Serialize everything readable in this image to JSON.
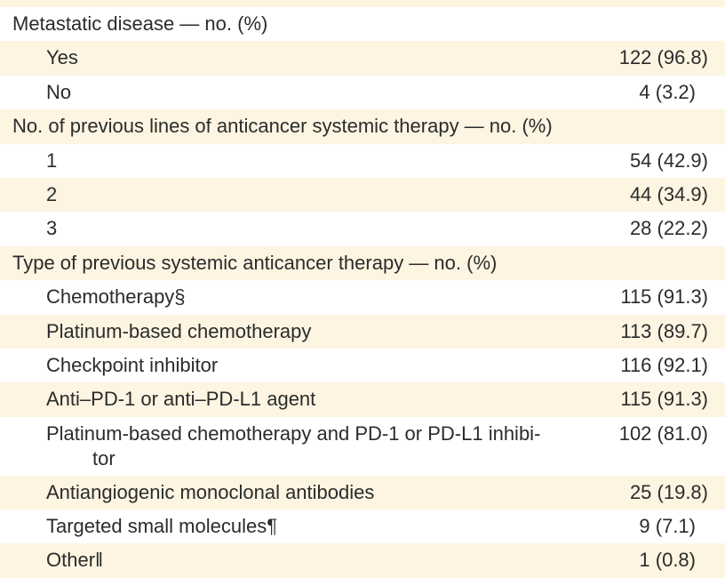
{
  "table": {
    "rows": [
      {
        "label": "Metastatic disease — no. (%)",
        "value": "",
        "type": "header"
      },
      {
        "label": "Yes",
        "value": "122 (96.8)",
        "type": "sub"
      },
      {
        "label": "No",
        "value": "4 (3.2)",
        "type": "sub"
      },
      {
        "label": "No. of previous lines of anticancer systemic therapy — no. (%)",
        "value": "",
        "type": "header"
      },
      {
        "label": "1",
        "value": "54 (42.9)",
        "type": "sub"
      },
      {
        "label": "2",
        "value": "44 (34.9)",
        "type": "sub"
      },
      {
        "label": "3",
        "value": "28 (22.2)",
        "type": "sub"
      },
      {
        "label": "Type of previous systemic anticancer therapy — no. (%)",
        "value": "",
        "type": "header"
      },
      {
        "label": "Chemotherapy§",
        "value": "115 (91.3)",
        "type": "sub"
      },
      {
        "label": "Platinum-based chemotherapy",
        "value": "113 (89.7)",
        "type": "sub"
      },
      {
        "label": "Checkpoint inhibitor",
        "value": "116 (92.1)",
        "type": "sub"
      },
      {
        "label": "Anti–PD-1 or anti–PD-L1 agent",
        "value": "115 (91.3)",
        "type": "sub"
      },
      {
        "label": "Platinum-based chemotherapy and PD-1 or PD-L1 inhibi-",
        "label_cont": "tor",
        "value": "102 (81.0)",
        "type": "sub"
      },
      {
        "label": "Antiangiogenic monoclonal antibodies",
        "value": "25 (19.8)",
        "type": "sub"
      },
      {
        "label": "Targeted small molecules¶",
        "value": "9 (7.1)",
        "type": "sub"
      },
      {
        "label": "Other‖",
        "value": "1 (0.8)",
        "type": "sub"
      }
    ]
  },
  "colors": {
    "stripe": "#fdf5e2",
    "text": "#2b2b2b"
  }
}
